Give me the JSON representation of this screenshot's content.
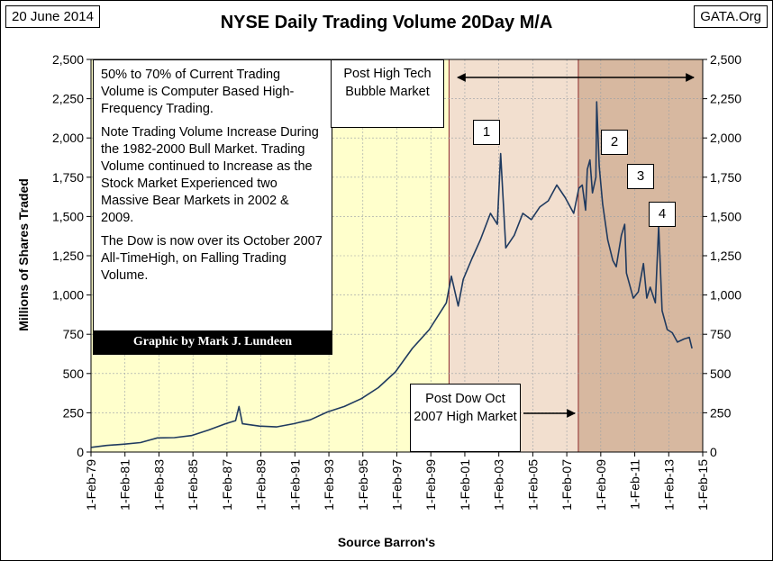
{
  "header": {
    "date": "20 June 2014",
    "source": "GATA.Org"
  },
  "chart_data": {
    "type": "line",
    "title": "NYSE Daily Trading Volume 20Day  M/A",
    "xlabel": "Source Barron's",
    "ylabel": "Millions of Shares Traded",
    "ylim": [
      0,
      2500
    ],
    "y_ticks": [
      "0",
      "250",
      "500",
      "750",
      "1,000",
      "1,250",
      "1,500",
      "1,750",
      "2,000",
      "2,250",
      "2,500"
    ],
    "x_ticks": [
      "1-Feb-79",
      "1-Feb-81",
      "1-Feb-83",
      "1-Feb-85",
      "1-Feb-87",
      "1-Feb-89",
      "1-Feb-91",
      "1-Feb-93",
      "1-Feb-95",
      "1-Feb-97",
      "1-Feb-99",
      "1-Feb-01",
      "1-Feb-03",
      "1-Feb-05",
      "1-Feb-07",
      "1-Feb-09",
      "1-Feb-11",
      "1-Feb-13",
      "1-Feb-15"
    ],
    "xlim": [
      1979.09,
      2015.09
    ],
    "series": [
      {
        "color": "#1f3a5f",
        "points": [
          [
            1979.1,
            30
          ],
          [
            1980.0,
            42
          ],
          [
            1981.0,
            50
          ],
          [
            1982.0,
            60
          ],
          [
            1982.6,
            78
          ],
          [
            1983.0,
            90
          ],
          [
            1984.0,
            92
          ],
          [
            1985.0,
            105
          ],
          [
            1986.0,
            140
          ],
          [
            1987.0,
            180
          ],
          [
            1987.6,
            200
          ],
          [
            1987.8,
            290
          ],
          [
            1988.0,
            180
          ],
          [
            1989.0,
            165
          ],
          [
            1990.0,
            160
          ],
          [
            1991.0,
            180
          ],
          [
            1992.0,
            205
          ],
          [
            1993.0,
            255
          ],
          [
            1994.0,
            290
          ],
          [
            1995.0,
            340
          ],
          [
            1996.0,
            410
          ],
          [
            1997.0,
            510
          ],
          [
            1998.0,
            660
          ],
          [
            1999.0,
            780
          ],
          [
            2000.0,
            950
          ],
          [
            2000.3,
            1120
          ],
          [
            2000.7,
            930
          ],
          [
            2001.0,
            1100
          ],
          [
            2001.5,
            1230
          ],
          [
            2002.0,
            1350
          ],
          [
            2002.6,
            1520
          ],
          [
            2003.0,
            1450
          ],
          [
            2003.2,
            1900
          ],
          [
            2003.5,
            1300
          ],
          [
            2004.0,
            1380
          ],
          [
            2004.5,
            1520
          ],
          [
            2005.0,
            1480
          ],
          [
            2005.5,
            1560
          ],
          [
            2006.0,
            1600
          ],
          [
            2006.5,
            1700
          ],
          [
            2007.0,
            1620
          ],
          [
            2007.5,
            1520
          ],
          [
            2007.8,
            1680
          ],
          [
            2008.0,
            1700
          ],
          [
            2008.2,
            1540
          ],
          [
            2008.3,
            1800
          ],
          [
            2008.45,
            1860
          ],
          [
            2008.6,
            1650
          ],
          [
            2008.8,
            1750
          ],
          [
            2008.85,
            2230
          ],
          [
            2009.0,
            1820
          ],
          [
            2009.2,
            1580
          ],
          [
            2009.5,
            1350
          ],
          [
            2009.8,
            1220
          ],
          [
            2010.0,
            1180
          ],
          [
            2010.3,
            1380
          ],
          [
            2010.5,
            1450
          ],
          [
            2010.6,
            1140
          ],
          [
            2010.8,
            1060
          ],
          [
            2011.0,
            980
          ],
          [
            2011.3,
            1020
          ],
          [
            2011.6,
            1200
          ],
          [
            2011.8,
            980
          ],
          [
            2012.0,
            1050
          ],
          [
            2012.3,
            950
          ],
          [
            2012.5,
            1440
          ],
          [
            2012.7,
            900
          ],
          [
            2013.0,
            780
          ],
          [
            2013.3,
            760
          ],
          [
            2013.6,
            700
          ],
          [
            2014.0,
            720
          ],
          [
            2014.3,
            730
          ],
          [
            2014.46,
            660
          ]
        ]
      }
    ],
    "shaded_regions": [
      {
        "from": 1979.09,
        "to": 2000.16,
        "color": "#ffffcc"
      },
      {
        "from": 2000.16,
        "to": 2007.77,
        "color": "#f2dfcf"
      },
      {
        "from": 2007.77,
        "to": 2015.09,
        "color": "#d7b8a0"
      }
    ],
    "annotations": {
      "note_lines": [
        "50% to 70% of Current Trading Volume is Computer Based High-Frequency Trading.",
        "Note Trading Volume Increase During the 1982-2000 Bull Market.  Trading Volume continued to Increase as the Stock Market Experienced two Massive Bear Markets in 2002 & 2009.",
        "The Dow is now over its October 2007 All-TimeHigh, on Falling Trading Volume."
      ],
      "credit": "Graphic by Mark J. Lundeen",
      "post_high": "Post High Tech  Bubble Market",
      "post_dow": "Post Dow Oct 2007 High Market",
      "peaks": [
        "1",
        "2",
        "3",
        "4"
      ]
    }
  }
}
